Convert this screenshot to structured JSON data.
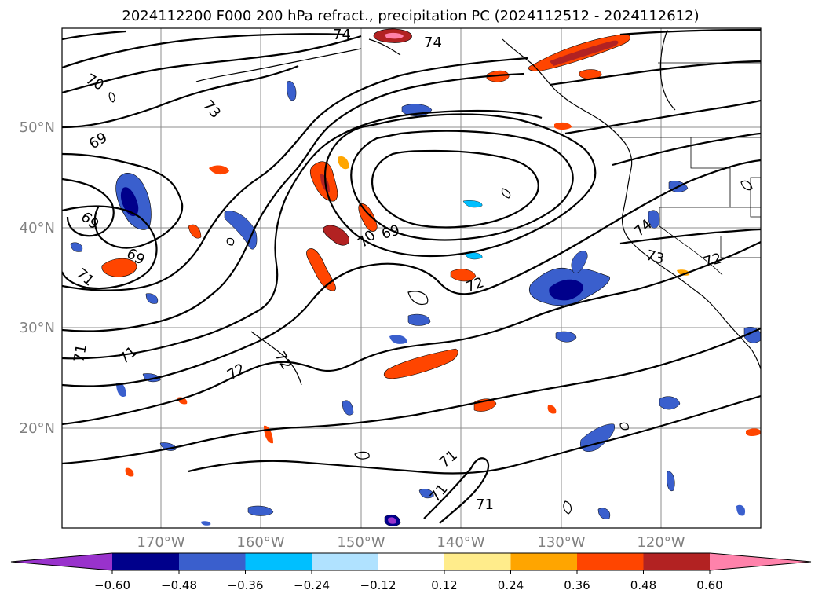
{
  "title": "2024112200 F000 200 hPa refract., precipitation PC (2024112512 - 2024112612)",
  "lat_ticks": [
    "20°N",
    "30°N",
    "40°N",
    "50°N"
  ],
  "lon_ticks": [
    "170°W",
    "160°W",
    "150°W",
    "140°W",
    "130°W",
    "120°W"
  ],
  "contour_labels": [
    "74",
    "74",
    "70",
    "73",
    "69",
    "69",
    "69",
    "71",
    "70",
    "69",
    "72",
    "71",
    "72",
    "72",
    "71",
    "71",
    "71",
    "71",
    "74",
    "73",
    "72"
  ],
  "colorbar": {
    "ticks": [
      "−0.60",
      "−0.48",
      "−0.36",
      "−0.24",
      "−0.12",
      "0.12",
      "0.24",
      "0.36",
      "0.48",
      "0.60"
    ],
    "colors": [
      "#9932cc",
      "#00008b",
      "#3a5fcd",
      "#00bfff",
      "#b0e2ff",
      "#ffffff",
      "#ffec8b",
      "#ffa500",
      "#ff4500",
      "#b22222",
      "#ff82ab"
    ]
  }
}
